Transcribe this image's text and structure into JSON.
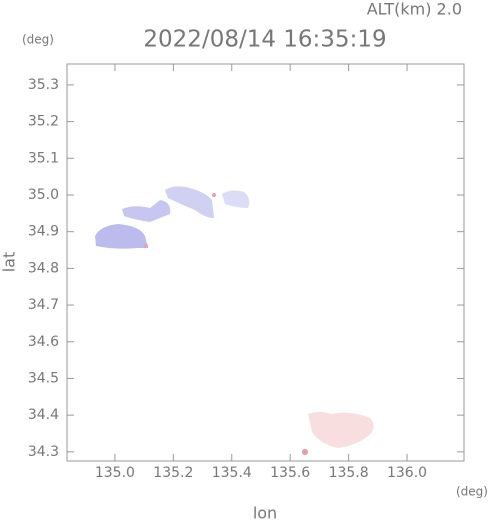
{
  "chart_data": {
    "type": "map",
    "title": "2022/08/14 16:35:19",
    "altitude_label": "ALT(km) 2.0",
    "y_unit": "(deg)",
    "x_unit": "(deg)",
    "xlabel": "lon",
    "ylabel": "lat",
    "xlim": [
      134.836,
      136.195
    ],
    "ylim": [
      34.275,
      35.357
    ],
    "xticks": [
      {
        "value": 135.0,
        "label": "135.0"
      },
      135.2,
      135.4,
      135.6,
      135.8,
      {
        "value": 136.0,
        "label": "136.0"
      }
    ],
    "yticks": [
      34.3,
      34.4,
      34.5,
      34.6,
      34.7,
      34.8,
      34.9,
      {
        "value": 35.0,
        "label": "35.0"
      },
      35.1,
      35.2,
      35.3
    ]
  }
}
